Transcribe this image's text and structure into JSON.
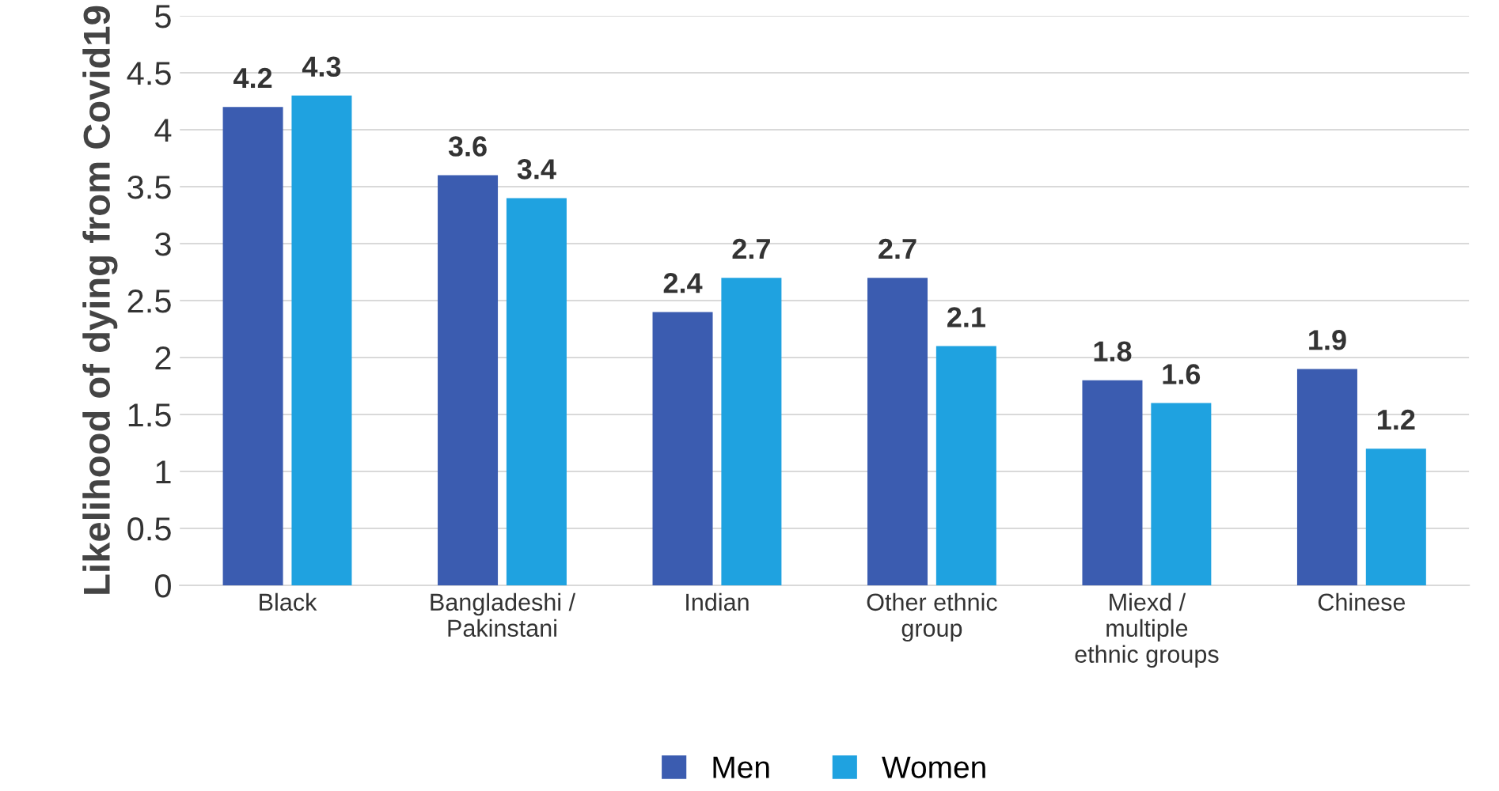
{
  "chart_data": {
    "type": "bar",
    "ylabel": "Likelihood of dying from Covid19",
    "categories": [
      "Black",
      "Bangladeshi /\nPakinstani",
      "Indian",
      "Other ethnic\ngroup",
      "Miexd /\nmultiple\nethnic groups",
      "Chinese"
    ],
    "series": [
      {
        "name": "Men",
        "color": "#3b5cb0",
        "values": [
          4.2,
          3.6,
          2.4,
          2.7,
          1.8,
          1.9
        ]
      },
      {
        "name": "Women",
        "color": "#1fa2e0",
        "values": [
          4.3,
          3.4,
          2.7,
          2.1,
          1.6,
          1.2
        ]
      }
    ],
    "ylim": [
      0,
      5
    ],
    "yticks": [
      0,
      0.5,
      1,
      1.5,
      2,
      2.5,
      3,
      3.5,
      4,
      4.5,
      5
    ],
    "grid": "y",
    "legend": "bottom",
    "data_labels": true
  }
}
